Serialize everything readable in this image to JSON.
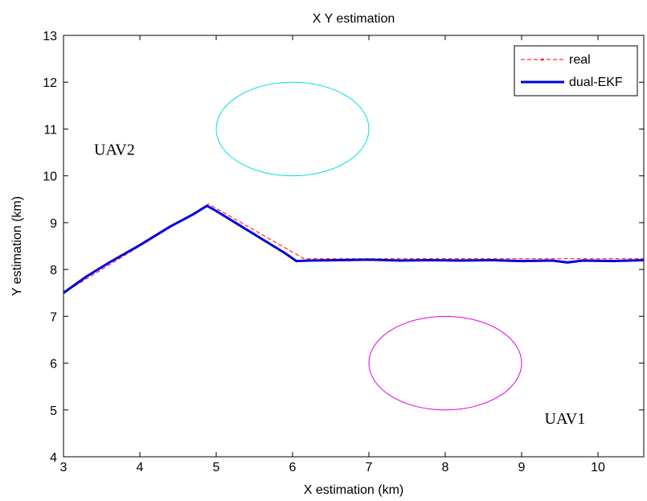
{
  "chart_data": {
    "type": "line",
    "title": "X Y estimation",
    "xlabel": "X estimation (km)",
    "ylabel": "Y estimation (km)",
    "xlim": [
      3,
      10.6
    ],
    "ylim": [
      4,
      13
    ],
    "xticks": [
      3,
      4,
      5,
      6,
      7,
      8,
      9,
      10
    ],
    "yticks": [
      4,
      5,
      6,
      7,
      8,
      9,
      10,
      11,
      12,
      13
    ],
    "grid": false,
    "legend": "top-right",
    "series": [
      {
        "name": "real",
        "color": "#ff0000",
        "style": "dashed",
        "x": [
          3,
          4.9,
          6.15,
          10.6
        ],
        "y": [
          7.5,
          9.4,
          8.23,
          8.23
        ]
      },
      {
        "name": "dual-EKF",
        "color": "#0000e0",
        "style": "solid",
        "x": [
          3,
          3.3,
          3.6,
          4.0,
          4.4,
          4.7,
          4.88,
          5.0,
          5.3,
          5.6,
          5.9,
          6.05,
          6.2,
          6.6,
          7.0,
          7.4,
          7.8,
          8.2,
          8.6,
          9.0,
          9.4,
          9.6,
          9.8,
          10.2,
          10.6
        ],
        "y": [
          7.5,
          7.85,
          8.15,
          8.52,
          8.92,
          9.18,
          9.36,
          9.25,
          8.95,
          8.65,
          8.35,
          8.18,
          8.19,
          8.2,
          8.21,
          8.19,
          8.2,
          8.19,
          8.2,
          8.18,
          8.19,
          8.15,
          8.19,
          8.18,
          8.2
        ]
      }
    ],
    "shapes": [
      {
        "type": "ellipse",
        "cx": 6,
        "cy": 11,
        "rx": 1,
        "ry": 1,
        "color": "#00e0e0"
      },
      {
        "type": "ellipse",
        "cx": 8,
        "cy": 6,
        "rx": 1,
        "ry": 1,
        "color": "#e000e0"
      }
    ],
    "annotations": [
      {
        "text": "UAV2",
        "x": 3.4,
        "y": 10.45
      },
      {
        "text": "UAV1",
        "x": 9.3,
        "y": 4.7
      }
    ]
  }
}
